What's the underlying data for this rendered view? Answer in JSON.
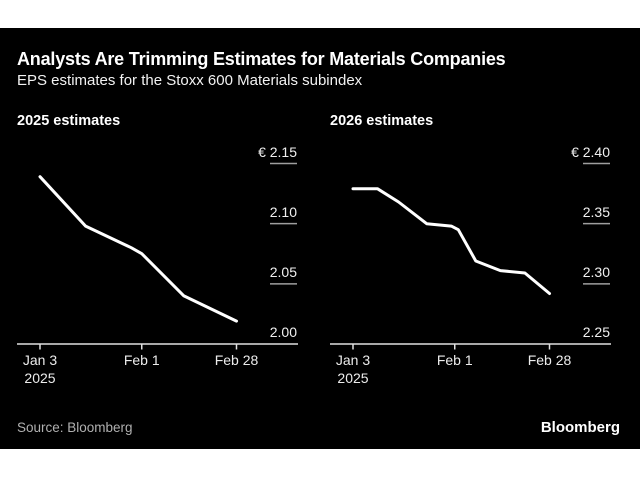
{
  "page": {
    "title": "Analysts Are Trimming Estimates for Materials Companies",
    "subtitle": "EPS estimates for the Stoxx 600 Materials subindex",
    "source": "Source: Bloomberg",
    "logo": "Bloomberg",
    "colors": {
      "page_bg": "#ffffff",
      "canvas_bg": "#000000",
      "title": "#ffffff",
      "line": "#ffffff",
      "axis": "#e0e0e0",
      "grid_dash": "#9e9e9e",
      "tick_label": "#f0f0f0",
      "source_text": "#b0b0b0"
    }
  },
  "chart_data": [
    {
      "type": "line",
      "title": "2025 estimates",
      "currency": "EUR",
      "x_domain_days": [
        0,
        56
      ],
      "x_tick_days": [
        0,
        29,
        56
      ],
      "x_tick_labels": [
        "Jan 3\n2025",
        "Feb 1",
        "Feb 28"
      ],
      "ylim": [
        2.0,
        2.15
      ],
      "y_ticks": [
        2.15,
        2.1,
        2.05,
        2.0
      ],
      "y_tick_labels": [
        "€ 2.15",
        "2.10",
        "2.05",
        "2.00"
      ],
      "grid": "right-edge tick dashes, no full gridlines",
      "legend": "none",
      "series": [
        {
          "name": "2025 EPS estimate",
          "x_days_from_jan3": [
            0,
            13,
            26,
            29,
            41,
            56
          ],
          "x_dates": [
            "Jan 3",
            "Jan 16",
            "Jan 29",
            "Feb 1",
            "Feb 13",
            "Feb 28"
          ],
          "values": [
            2.139,
            2.098,
            2.08,
            2.075,
            2.04,
            2.019
          ]
        }
      ]
    },
    {
      "type": "line",
      "title": "2026 estimates",
      "currency": "EUR",
      "x_domain_days": [
        0,
        56
      ],
      "x_tick_days": [
        0,
        29,
        56
      ],
      "x_tick_labels": [
        "Jan 3\n2025",
        "Feb 1",
        "Feb 28"
      ],
      "ylim": [
        2.25,
        2.4
      ],
      "y_ticks": [
        2.4,
        2.35,
        2.3,
        2.25
      ],
      "y_tick_labels": [
        "€ 2.40",
        "2.35",
        "2.30",
        "2.25"
      ],
      "grid": "right-edge tick dashes, no full gridlines",
      "legend": "none",
      "series": [
        {
          "name": "2026 EPS estimate",
          "x_days_from_jan3": [
            0,
            7,
            13,
            21,
            28,
            30,
            35,
            42,
            49,
            56
          ],
          "x_dates": [
            "Jan 3",
            "Jan 10",
            "Jan 16",
            "Jan 24",
            "Jan 31",
            "Feb 2",
            "Feb 7",
            "Feb 14",
            "Feb 21",
            "Feb 28"
          ],
          "values": [
            2.379,
            2.379,
            2.368,
            2.35,
            2.348,
            2.345,
            2.319,
            2.311,
            2.309,
            2.292
          ]
        }
      ]
    }
  ]
}
